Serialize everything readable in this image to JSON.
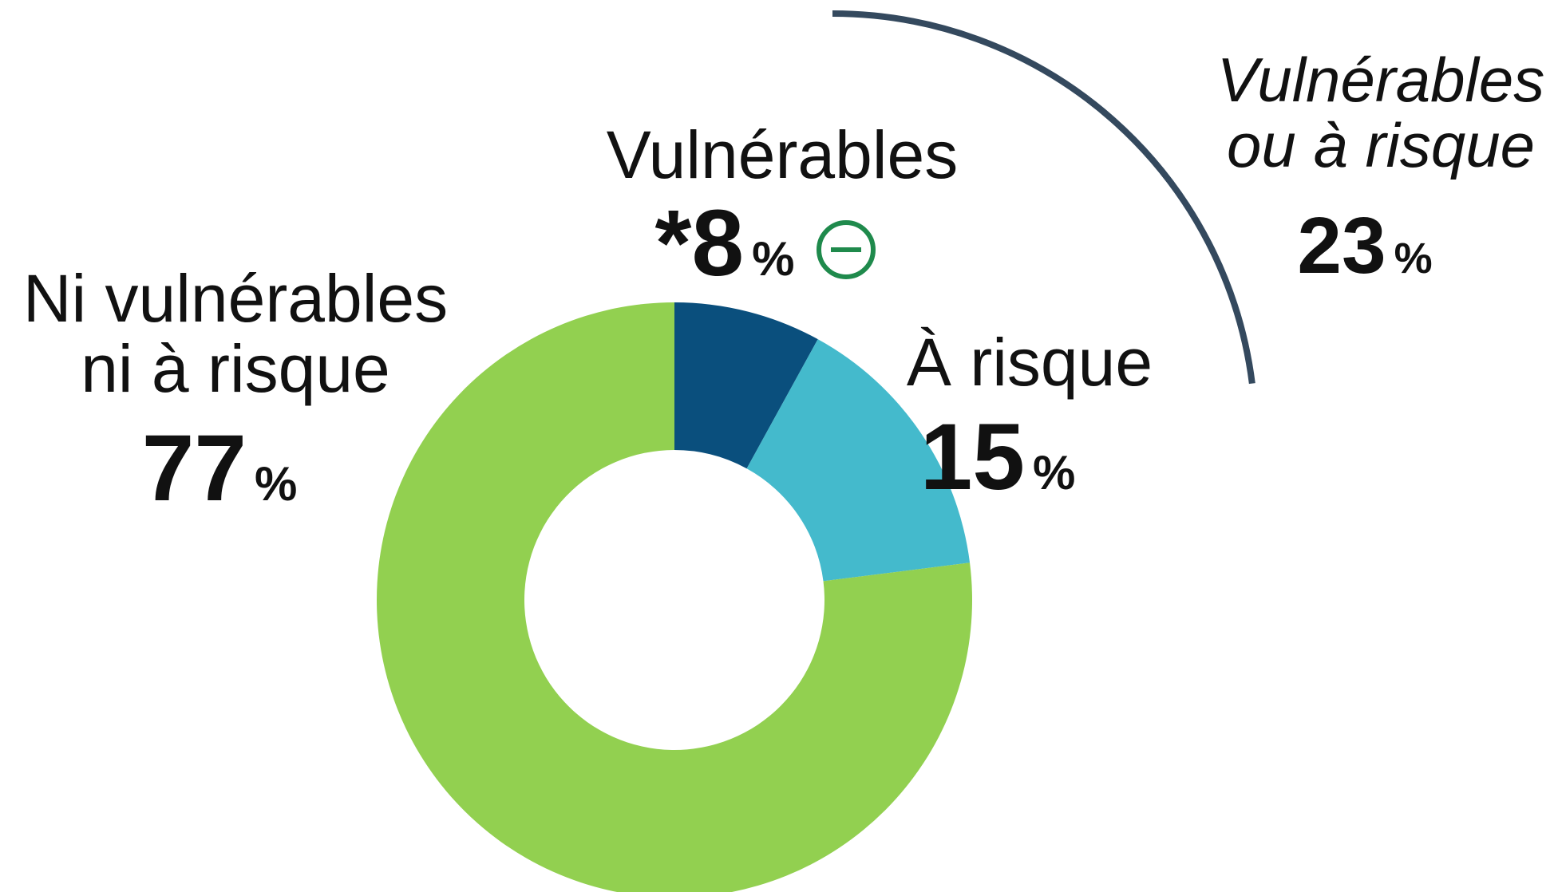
{
  "chart_data": {
    "type": "donut",
    "segments": [
      {
        "label": "Vulnérables",
        "value": 8,
        "display": "8",
        "prefix": "*",
        "color": "#0a4f7d",
        "indicator": "minus-circle-icon",
        "indicator_color": "#1f8a4c"
      },
      {
        "label": "À risque",
        "value": 15,
        "display": "15",
        "prefix": "",
        "color": "#44bacc"
      },
      {
        "label": "Ni vulnérables ni à risque",
        "label_lines": [
          "Ni vulnérables",
          "ni à risque"
        ],
        "value": 77,
        "display": "77",
        "prefix": "",
        "color": "#92d050"
      }
    ],
    "combined": {
      "label_lines": [
        "Vulnérables",
        "ou à risque"
      ],
      "value": 23,
      "display": "23",
      "bracket_color": "#34495e"
    },
    "percent_sign": "%"
  }
}
